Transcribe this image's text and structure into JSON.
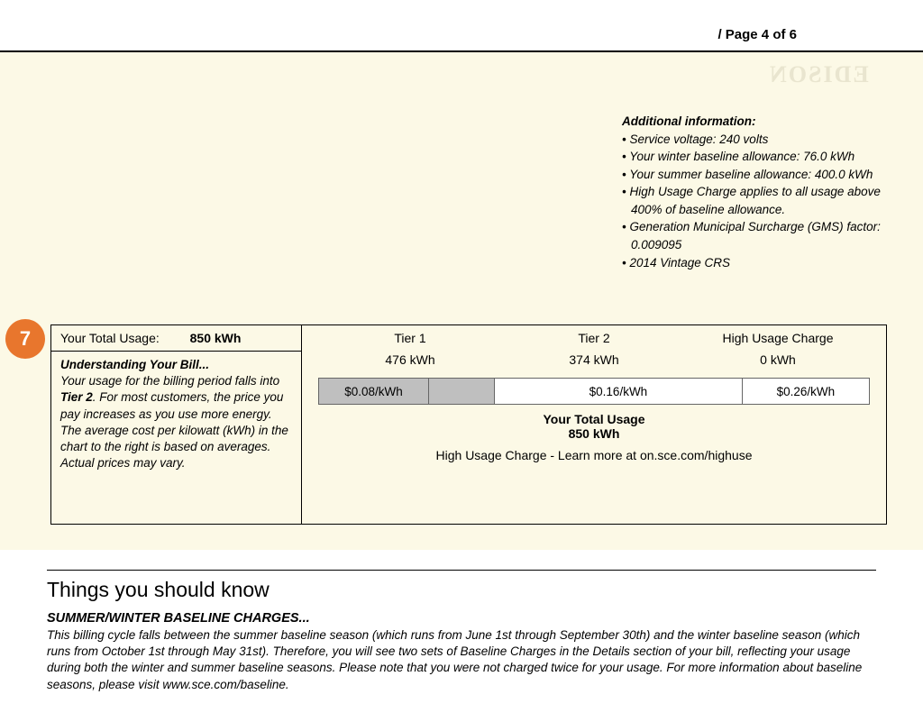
{
  "page_indicator": "/ Page 4 of 6",
  "watermark_text": "EDISON",
  "additional_info": {
    "header": "Additional information:",
    "items": [
      "Service voltage: 240 volts",
      "Your winter baseline allowance: 76.0 kWh",
      "Your summer baseline allowance: 400.0 kWh",
      "High Usage Charge applies to all usage above 400% of baseline allowance.",
      "Generation Municipal Surcharge (GMS) factor: 0.009095",
      "2014 Vintage CRS"
    ]
  },
  "callout_number": "7",
  "usage_panel": {
    "total_label": "Your Total Usage:",
    "total_value": "850 kWh",
    "explain_title": "Understanding Your Bill...",
    "explain_body_pre": "Your usage for the billing period falls into ",
    "explain_tier": "Tier 2",
    "explain_body_post": ". For most customers, the price you pay increases as you use more energy. The average cost per kilowatt (kWh) in the chart to the right is based on averages. Actual prices may vary.",
    "tiers": {
      "headers": [
        "Tier 1",
        "Tier 2",
        "High Usage Charge"
      ],
      "values": [
        "476 kWh",
        "374 kWh",
        "0 kWh"
      ]
    },
    "rate_bar": {
      "segments": [
        {
          "label": "$0.08/kWh",
          "width_pct": 20,
          "bg": "#bfbfbf"
        },
        {
          "label": "",
          "width_pct": 12,
          "bg": "#bfbfbf"
        },
        {
          "label": "$0.16/kWh",
          "width_pct": 45,
          "bg": "#ffffff"
        },
        {
          "label": "$0.26/kWh",
          "width_pct": 23,
          "bg": "#ffffff"
        }
      ]
    },
    "summary_title": "Your Total Usage",
    "summary_value": "850 kWh",
    "huc_note": "High Usage Charge - Learn more at on.sce.com/highuse"
  },
  "things_section": {
    "heading": "Things you should know",
    "sub_title": "SUMMER/WINTER BASELINE CHARGES...",
    "body": "This billing cycle falls between the summer baseline season (which runs from June 1st through September 30th) and the winter baseline season (which runs from October 1st through May 31st). Therefore, you will see two sets of Baseline Charges in the Details section of your bill, reflecting your usage during both the winter and summer baseline seasons. Please note that you were not charged twice for your usage. For more information about baseline seasons, please visit www.sce.com/baseline."
  },
  "colors": {
    "yellow_bg": "#fcf9e6",
    "badge": "#e8762d",
    "grey_bar": "#bfbfbf"
  }
}
